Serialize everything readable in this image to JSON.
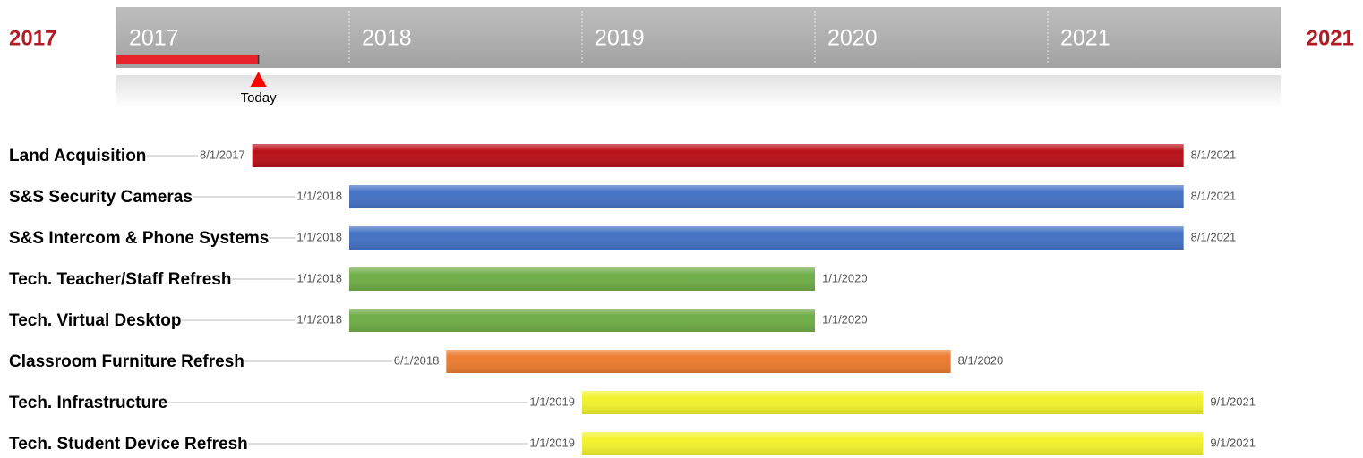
{
  "chart_data": {
    "type": "gantt",
    "start_label": "2017",
    "end_label": "2021",
    "xlim": [
      2017,
      2022
    ],
    "xticks": [
      2017,
      2018,
      2019,
      2020,
      2021
    ],
    "today": 2017.61,
    "today_label": "Today",
    "progress_color": "#e8232b",
    "tasks": [
      {
        "name": "Land Acquisition",
        "start": "8/1/2017",
        "end": "8/1/2021",
        "color": "#b8121a"
      },
      {
        "name": "S&S Security Cameras",
        "start": "1/1/2018",
        "end": "8/1/2021",
        "color": "#4472c4"
      },
      {
        "name": "S&S Intercom & Phone Systems",
        "start": "1/1/2018",
        "end": "8/1/2021",
        "color": "#4472c4"
      },
      {
        "name": "Tech. Teacher/Staff Refresh",
        "start": "1/1/2018",
        "end": "1/1/2020",
        "color": "#70ad47"
      },
      {
        "name": "Tech. Virtual Desktop",
        "start": "1/1/2018",
        "end": "1/1/2020",
        "color": "#70ad47"
      },
      {
        "name": "Classroom Furniture Refresh",
        "start": "6/1/2018",
        "end": "8/1/2020",
        "color": "#ed7d31"
      },
      {
        "name": "Tech. Infrastructure",
        "start": "1/1/2019",
        "end": "9/1/2021",
        "color": "#f2f22e"
      },
      {
        "name": "Tech. Student Device Refresh",
        "start": "1/1/2019",
        "end": "9/1/2021",
        "color": "#f2f22e"
      }
    ]
  }
}
